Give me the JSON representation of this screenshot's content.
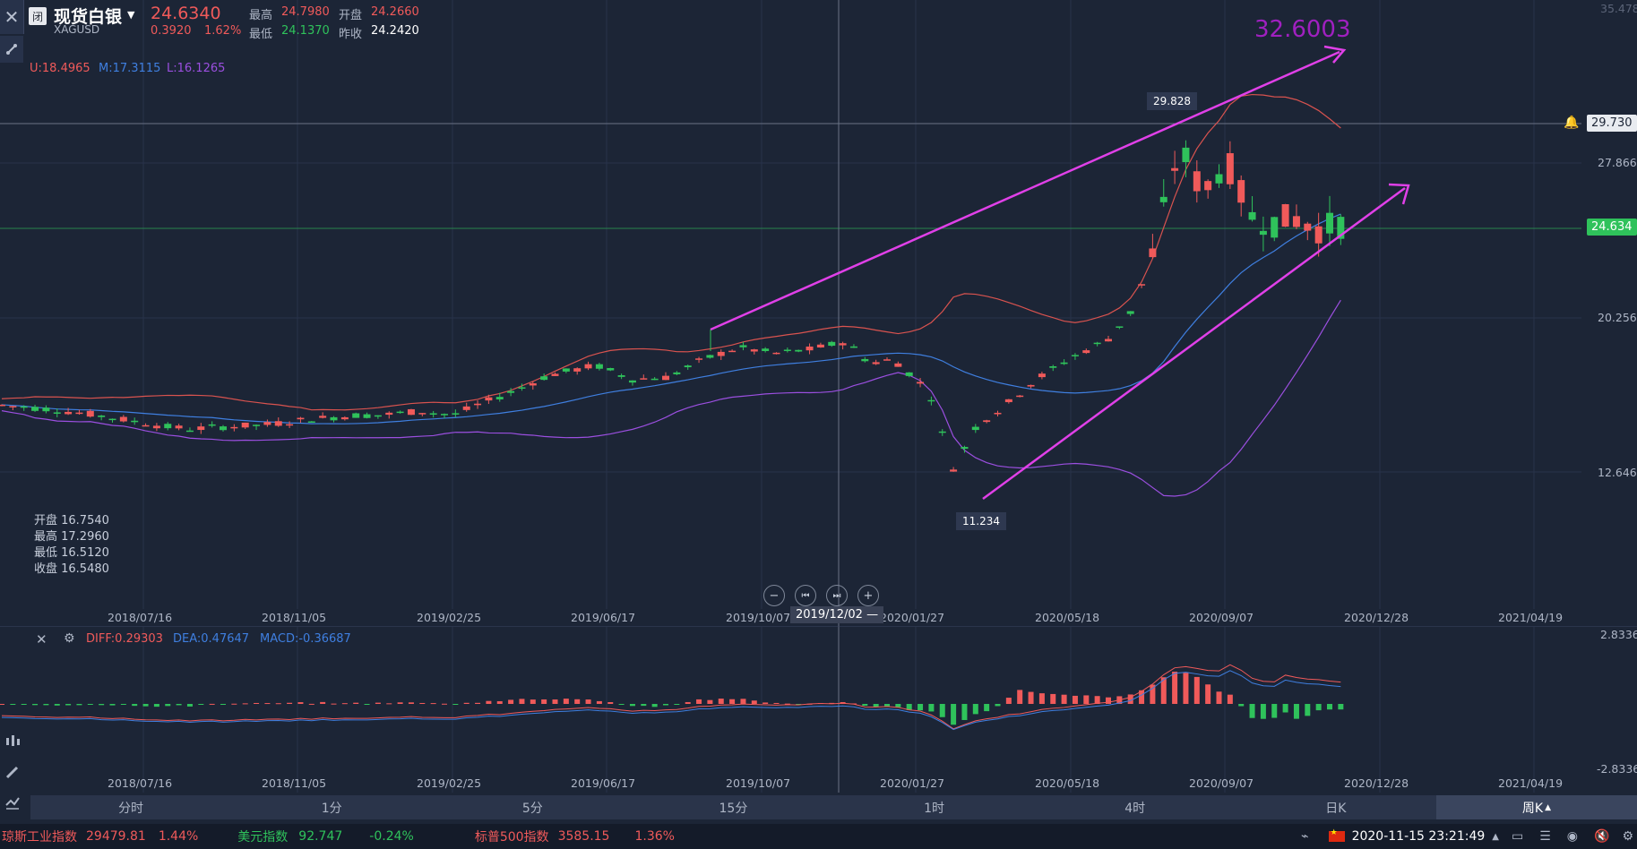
{
  "header": {
    "status_badge": "闭",
    "name": "现货白银",
    "code": "XAGUSD",
    "price": "24.6340",
    "change": "0.3920",
    "change_pct": "1.62%",
    "high_label": "最高",
    "high": "24.7980",
    "open_label": "开盘",
    "open": "24.2660",
    "low_label": "最低",
    "low": "24.1370",
    "prev_label": "昨收",
    "prev": "24.2420"
  },
  "boll": {
    "u": "U:18.4965",
    "m": "M:17.3115",
    "l": "L:16.1265"
  },
  "ohlc_box": {
    "open": "开盘 16.7540",
    "high": "最高 17.2960",
    "low": "最低 16.5120",
    "close": "收盘 16.5480"
  },
  "annotations": {
    "target": "32.6003",
    "peak": "29.828",
    "trough": "11.234"
  },
  "price_axis": {
    "top_partial": "35.478",
    "labels": [
      "27.866",
      "20.256",
      "12.646"
    ],
    "alert_line": "29.730",
    "current": "24.634"
  },
  "x_axis": {
    "labels": [
      "2018/07/16",
      "2018/11/05",
      "2019/02/25",
      "2019/06/17",
      "2019/10/07",
      "2020/01/27",
      "2020/05/18",
      "2020/09/07",
      "2020/12/28",
      "2021/04/19"
    ],
    "crosshair": "2019/12/02"
  },
  "macd": {
    "diff": "DIFF:0.29303",
    "dea": "DEA:0.47647",
    "macd": "MACD:-0.36687",
    "axis_top": "2.8336",
    "axis_bottom": "-2.8336"
  },
  "timeframes": [
    "分时",
    "1分",
    "5分",
    "15分",
    "1时",
    "4时",
    "日K",
    "周K"
  ],
  "active_timeframe": "周K",
  "ticker": {
    "items": [
      {
        "name": "琼斯工业指数",
        "value": "29479.81",
        "pct": "1.44%",
        "dir": "up"
      },
      {
        "name": "美元指数",
        "value": "92.747",
        "pct": "-0.24%",
        "dir": "down"
      },
      {
        "name": "标普500指数",
        "value": "3585.15",
        "pct": "1.36%",
        "dir": "up"
      }
    ],
    "datetime": "2020-11-15 23:21:49"
  },
  "colors": {
    "up": "#f05a5a",
    "down": "#2fc25b",
    "upper_band": "#d9534f",
    "mid_band": "#3f7fe0",
    "lower_band": "#9b4fe0",
    "trendline": "#e040e8",
    "target_text": "#a020c0"
  },
  "chart_data": {
    "type": "candlestick",
    "series_note": "weekly candles with Bollinger bands (U/M/L), trend channel lines and MACD sub-chart",
    "price_peak": 29.828,
    "price_trough": 11.234,
    "target": 32.6003,
    "current": 24.634,
    "alert": 29.73
  }
}
